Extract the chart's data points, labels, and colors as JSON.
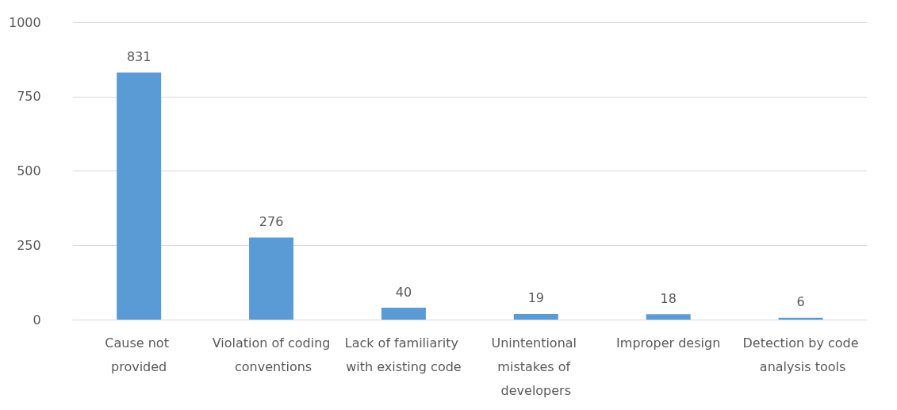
{
  "chart_data": {
    "type": "bar",
    "categories": [
      "Cause not provided",
      "Violation of coding conventions",
      "Lack of familiarity with existing code",
      "Unintentional mistakes of developers",
      "Improper design",
      "Detection by code analysis tools"
    ],
    "values": [
      831,
      276,
      40,
      19,
      18,
      6
    ],
    "color": "#5b9bd5",
    "ylim": [
      0,
      1000
    ],
    "yticks": [
      0,
      250,
      500,
      750,
      1000
    ],
    "grid": "y",
    "data_labels": true
  }
}
